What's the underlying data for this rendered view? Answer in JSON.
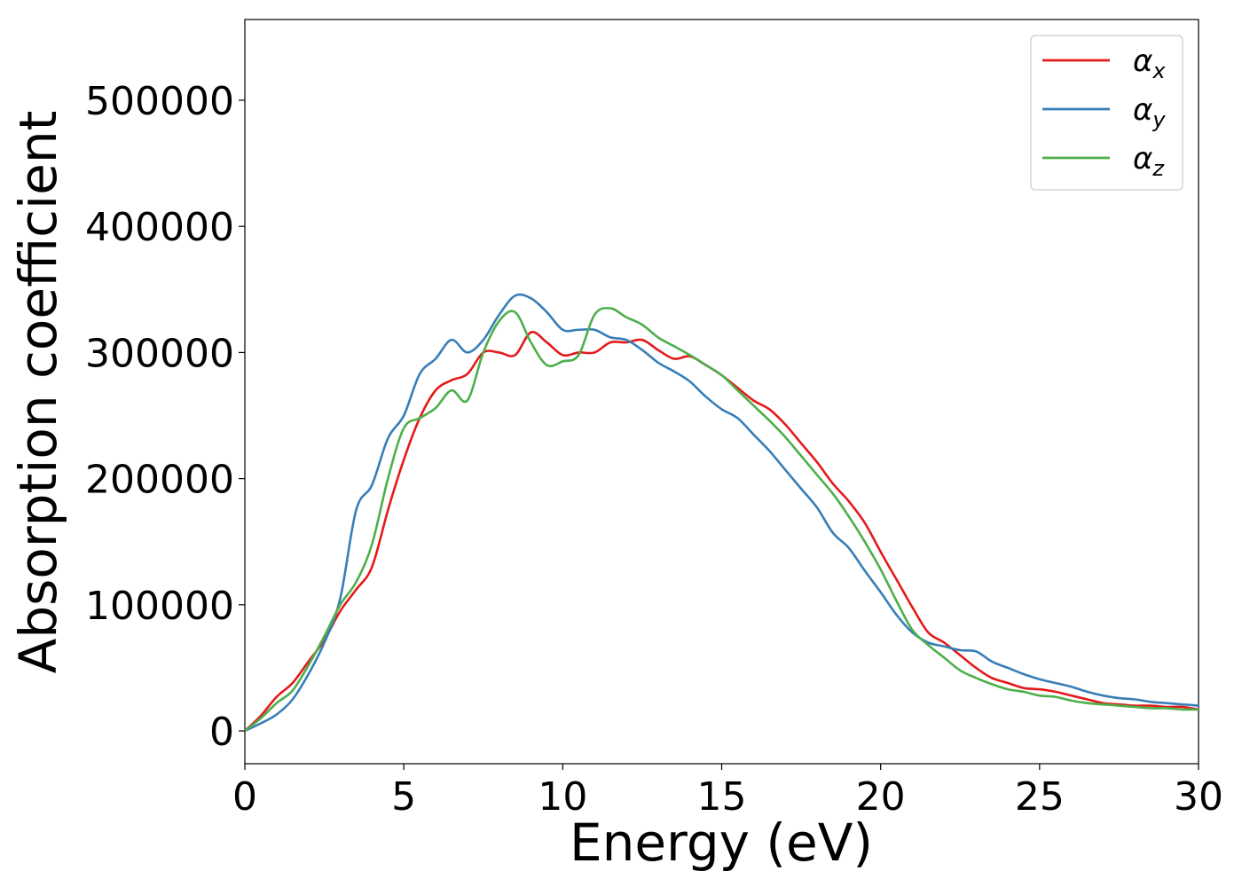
{
  "chart_data": {
    "type": "line",
    "title": "",
    "xlabel": "Energy (eV)",
    "ylabel": "Absorption coefficient",
    "xlim": [
      0,
      30
    ],
    "ylim": [
      -26000,
      564000
    ],
    "xticks": [
      0,
      5,
      10,
      15,
      20,
      25,
      30
    ],
    "xtick_labels": [
      "0",
      "5",
      "10",
      "15",
      "20",
      "25",
      "30"
    ],
    "yticks": [
      0,
      100000,
      200000,
      300000,
      400000,
      500000
    ],
    "ytick_labels": [
      "0",
      "100000",
      "200000",
      "300000",
      "400000",
      "500000"
    ],
    "grid": false,
    "legend_position": "top-right",
    "x": [
      0,
      0.5,
      1,
      1.5,
      2,
      2.5,
      3,
      3.5,
      4,
      4.5,
      5,
      5.5,
      6,
      6.5,
      7,
      7.5,
      8,
      8.5,
      9,
      9.5,
      10,
      10.5,
      11,
      11.5,
      12,
      12.5,
      13,
      13.5,
      14,
      14.5,
      15,
      15.5,
      16,
      16.5,
      17,
      17.5,
      18,
      18.5,
      19,
      19.5,
      20,
      20.5,
      21,
      21.5,
      22,
      22.5,
      23,
      23.5,
      24,
      24.5,
      25,
      25.5,
      26,
      26.5,
      27,
      27.5,
      28,
      28.5,
      29,
      29.5,
      30
    ],
    "series": [
      {
        "name": "α_x",
        "label_base": "α",
        "label_sub": "x",
        "color": "#e41a1c",
        "values": [
          0,
          12000,
          27000,
          38000,
          55000,
          72000,
          95000,
          112000,
          130000,
          175000,
          215000,
          248000,
          270000,
          278000,
          283000,
          300000,
          300000,
          298000,
          316000,
          308000,
          298000,
          300000,
          300000,
          308000,
          308000,
          310000,
          302000,
          295000,
          297000,
          290000,
          282000,
          272000,
          262000,
          255000,
          243000,
          228000,
          213000,
          196000,
          182000,
          165000,
          142000,
          120000,
          98000,
          78000,
          70000,
          60000,
          50000,
          42000,
          38000,
          34000,
          33000,
          31000,
          28000,
          25000,
          22000,
          21000,
          20000,
          20000,
          19000,
          19000,
          17000
        ]
      },
      {
        "name": "α_y",
        "label_base": "α",
        "label_sub": "y",
        "color": "#377eb8",
        "values": [
          0,
          6000,
          13000,
          25000,
          45000,
          70000,
          105000,
          175000,
          195000,
          232000,
          250000,
          283000,
          295000,
          310000,
          300000,
          310000,
          330000,
          345000,
          343000,
          332000,
          318000,
          318000,
          318000,
          312000,
          310000,
          302000,
          292000,
          285000,
          277000,
          265000,
          255000,
          248000,
          235000,
          222000,
          207000,
          192000,
          177000,
          157000,
          145000,
          127000,
          110000,
          92000,
          78000,
          70000,
          67000,
          64000,
          63000,
          55000,
          50000,
          45000,
          41000,
          38000,
          35000,
          31000,
          28000,
          26000,
          25000,
          23000,
          22000,
          21000,
          20000
        ]
      },
      {
        "name": "α_z",
        "label_base": "α",
        "label_sub": "z",
        "color": "#4daf4a",
        "values": [
          0,
          10000,
          22000,
          32000,
          52000,
          75000,
          100000,
          118000,
          148000,
          200000,
          240000,
          248000,
          256000,
          270000,
          262000,
          300000,
          325000,
          332000,
          308000,
          290000,
          293000,
          298000,
          330000,
          335000,
          328000,
          322000,
          312000,
          305000,
          298000,
          290000,
          282000,
          270000,
          258000,
          246000,
          233000,
          218000,
          203000,
          188000,
          170000,
          150000,
          128000,
          103000,
          80000,
          68000,
          58000,
          48000,
          42000,
          37000,
          33000,
          31000,
          28000,
          27000,
          24000,
          22000,
          21000,
          20000,
          19000,
          18000,
          18000,
          17000,
          17000
        ]
      }
    ]
  }
}
